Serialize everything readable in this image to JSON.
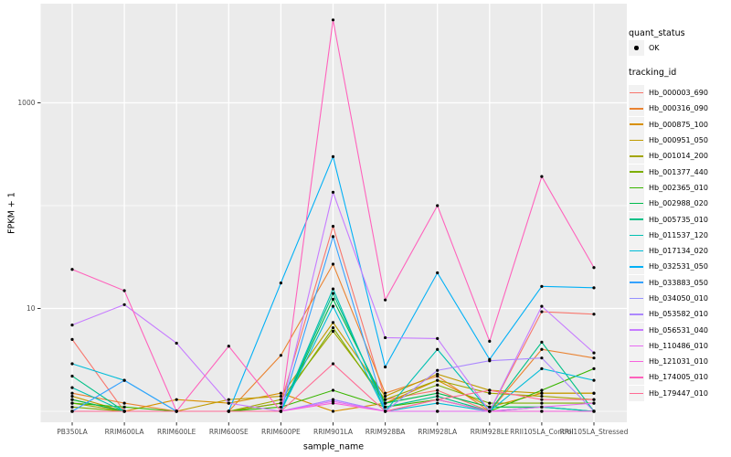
{
  "colors": {
    "panel_bg": "#EBEBEB",
    "grid": "#FFFFFF",
    "tick_label": "#4D4D4D",
    "axis_title": "#000000",
    "point": "#000000",
    "legend_key_bg": "#F2F2F2"
  },
  "chart_data": {
    "type": "line",
    "title": "",
    "xlabel": "sample_name",
    "ylabel": "FPKM + 1",
    "y_scale": "log10",
    "y_axis_breaks": [
      10,
      1000
    ],
    "y_tick_labels": [
      "10",
      "1000"
    ],
    "y_axis_minor_breaks": [
      1,
      100
    ],
    "grid": true,
    "legend_position": "right",
    "legend": {
      "quant_status_title": "quant_status",
      "quant_status_items": [
        "OK"
      ],
      "tracking_id_title": "tracking_id"
    },
    "categories": [
      "PB350LA",
      "RRIM600LA",
      "RRIM600LE",
      "RRIM600SE",
      "RRIM600PE",
      "RRIM901LA",
      "RRIM928BA",
      "RRIM928LA",
      "RRIM928LE",
      "RRII105LA_Control",
      "RRII105LA_Stressed"
    ],
    "series": [
      {
        "name": "Hb_000003_690",
        "color": "#F8766D",
        "values": [
          5.0,
          1.0,
          1.0,
          1.0,
          1.2,
          63,
          1.3,
          1.6,
          1.0,
          9.3,
          8.8
        ]
      },
      {
        "name": "Hb_000316_090",
        "color": "#EA8331",
        "values": [
          1.5,
          1.2,
          1.0,
          1.0,
          3.5,
          27,
          1.5,
          2.2,
          1.0,
          4.0,
          3.3
        ]
      },
      {
        "name": "Hb_000875_100",
        "color": "#D89000",
        "values": [
          1.3,
          1.0,
          1.3,
          1.2,
          1.5,
          1.0,
          1.2,
          2.0,
          1.1,
          1.5,
          1.5
        ]
      },
      {
        "name": "Hb_000951_050",
        "color": "#C09B00",
        "values": [
          1.4,
          1.0,
          1.0,
          1.3,
          1.4,
          7.3,
          1.4,
          2.3,
          1.6,
          1.5,
          1.5
        ]
      },
      {
        "name": "Hb_001014_200",
        "color": "#A3A500",
        "values": [
          1.2,
          1.0,
          1.0,
          1.0,
          1.3,
          6.0,
          1.3,
          2.0,
          1.5,
          1.4,
          1.3
        ]
      },
      {
        "name": "Hb_001377_440",
        "color": "#7CAE00",
        "values": [
          1.1,
          1.0,
          1.0,
          1.0,
          1.2,
          6.5,
          1.2,
          1.8,
          1.2,
          1.2,
          1.2
        ]
      },
      {
        "name": "Hb_002365_010",
        "color": "#39B600",
        "values": [
          1.2,
          1.1,
          1.0,
          1.0,
          1.1,
          1.6,
          1.1,
          1.3,
          1.0,
          1.6,
          2.6
        ]
      },
      {
        "name": "Hb_002988_020",
        "color": "#00BB4E",
        "values": [
          1.3,
          1.0,
          1.0,
          1.0,
          1.0,
          12.3,
          1.2,
          1.5,
          1.1,
          1.1,
          1.0
        ]
      },
      {
        "name": "Hb_005735_010",
        "color": "#00C087",
        "values": [
          2.2,
          1.0,
          1.0,
          1.0,
          1.0,
          14.0,
          1.1,
          1.4,
          1.0,
          4.7,
          1.0
        ]
      },
      {
        "name": "Hb_011537_120",
        "color": "#00C0B2",
        "values": [
          1.7,
          1.0,
          1.0,
          1.0,
          1.0,
          15.5,
          1.0,
          4.0,
          1.0,
          1.1,
          1.0
        ]
      },
      {
        "name": "Hb_017134_020",
        "color": "#00BCD8",
        "values": [
          2.9,
          2.0,
          1.0,
          1.0,
          1.0,
          10.5,
          1.0,
          1.2,
          1.0,
          2.6,
          2.0
        ]
      },
      {
        "name": "Hb_032531_050",
        "color": "#00B0F6",
        "values": [
          1.0,
          1.0,
          1.0,
          1.0,
          17.7,
          300,
          2.7,
          22.2,
          3.2,
          16.4,
          15.9
        ]
      },
      {
        "name": "Hb_033883_050",
        "color": "#35A2FF",
        "values": [
          1.0,
          2.0,
          1.0,
          1.0,
          1.0,
          50,
          1.0,
          1.0,
          1.0,
          1.0,
          1.0
        ]
      },
      {
        "name": "Hb_034050_010",
        "color": "#9590FF",
        "values": [
          1.0,
          1.0,
          1.0,
          1.0,
          1.0,
          1.3,
          1.0,
          1.0,
          1.0,
          1.0,
          1.0
        ]
      },
      {
        "name": "Hb_053582_010",
        "color": "#AC88FF",
        "values": [
          1.0,
          1.0,
          1.0,
          1.0,
          1.0,
          1.3,
          1.0,
          2.5,
          3.1,
          3.3,
          1.0
        ]
      },
      {
        "name": "Hb_056531_040",
        "color": "#C77CFF",
        "values": [
          6.9,
          10.9,
          4.6,
          1.2,
          1.0,
          135,
          5.2,
          5.1,
          1.0,
          10.5,
          3.7
        ]
      },
      {
        "name": "Hb_110486_010",
        "color": "#E76BF3",
        "values": [
          1.0,
          1.0,
          1.0,
          1.0,
          1.0,
          1.25,
          1.0,
          1.0,
          1.0,
          1.1,
          1.2
        ]
      },
      {
        "name": "Hb_121031_010",
        "color": "#F762DD",
        "values": [
          1.0,
          1.0,
          1.0,
          1.0,
          1.0,
          1.2,
          1.0,
          1.3,
          1.0,
          1.0,
          1.0
        ]
      },
      {
        "name": "Hb_174005_010",
        "color": "#FF62BC",
        "values": [
          24,
          14.9,
          1.0,
          4.3,
          1.0,
          6400,
          12.1,
          100,
          4.8,
          192,
          25
        ]
      },
      {
        "name": "Hb_179447_010",
        "color": "#FF6B94",
        "values": [
          1.0,
          1.0,
          1.0,
          1.0,
          1.0,
          2.9,
          1.0,
          1.3,
          1.6,
          1.3,
          1.3
        ]
      }
    ]
  }
}
